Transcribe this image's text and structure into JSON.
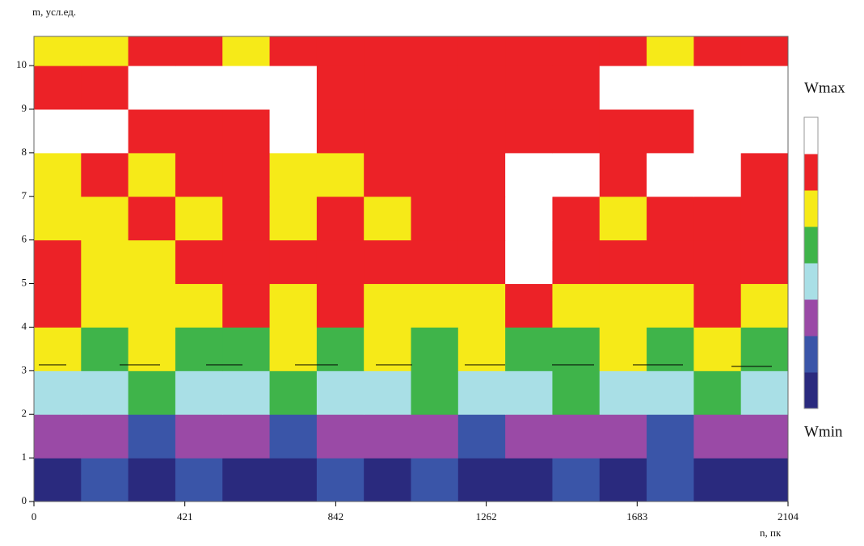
{
  "chart_data": {
    "type": "heatmap",
    "y_label": "m, усл.ед.",
    "x_label": "n, пк",
    "colorbar_max_label": "Wmax",
    "colorbar_min_label": "Wmin",
    "colors": [
      "#2a2a7e",
      "#3a55a8",
      "#9a4aa6",
      "#a9dfe6",
      "#3fb44a",
      "#f6ea18",
      "#ec2227",
      "#ffffff"
    ],
    "xlim": [
      0,
      2104
    ],
    "ylim": [
      0,
      10.67
    ],
    "xticks": [
      0,
      421,
      842,
      1262,
      1683,
      2104
    ],
    "yticks": [
      0,
      1,
      2,
      3,
      4,
      5,
      6,
      7,
      8,
      9,
      10
    ],
    "xbins": [
      0,
      131.5,
      263,
      394.5,
      526,
      657.5,
      789,
      920.5,
      1052,
      1183.5,
      1315,
      1446.5,
      1578,
      1709.5,
      1841,
      1972.5,
      2104
    ],
    "ybins": [
      0,
      1,
      2,
      3,
      4,
      5,
      6,
      7,
      8,
      9,
      10,
      10.67
    ],
    "z": [
      [
        0,
        1,
        0,
        1,
        0,
        0,
        1,
        0,
        1,
        0,
        0,
        1,
        0,
        1,
        0,
        0
      ],
      [
        2,
        2,
        1,
        2,
        2,
        1,
        2,
        2,
        2,
        1,
        2,
        2,
        2,
        1,
        2,
        2
      ],
      [
        3,
        3,
        4,
        3,
        3,
        4,
        3,
        3,
        4,
        3,
        3,
        4,
        3,
        3,
        4,
        3
      ],
      [
        5,
        4,
        5,
        4,
        4,
        5,
        4,
        5,
        4,
        5,
        4,
        4,
        5,
        4,
        5,
        4
      ],
      [
        6,
        5,
        5,
        5,
        6,
        5,
        6,
        5,
        5,
        5,
        6,
        5,
        5,
        5,
        6,
        5
      ],
      [
        6,
        5,
        5,
        6,
        6,
        6,
        6,
        6,
        6,
        6,
        7,
        6,
        6,
        6,
        6,
        6
      ],
      [
        5,
        5,
        6,
        5,
        6,
        5,
        6,
        5,
        6,
        6,
        7,
        6,
        5,
        6,
        6,
        6
      ],
      [
        5,
        6,
        5,
        6,
        6,
        5,
        5,
        6,
        6,
        6,
        7,
        7,
        6,
        7,
        7,
        6
      ],
      [
        7,
        7,
        6,
        6,
        6,
        7,
        6,
        6,
        6,
        6,
        6,
        6,
        6,
        6,
        7,
        7
      ],
      [
        6,
        6,
        7,
        7,
        7,
        7,
        6,
        6,
        6,
        6,
        6,
        6,
        7,
        7,
        7,
        7
      ],
      [
        5,
        5,
        6,
        6,
        5,
        6,
        6,
        6,
        6,
        6,
        6,
        6,
        6,
        5,
        6,
        6
      ]
    ]
  }
}
